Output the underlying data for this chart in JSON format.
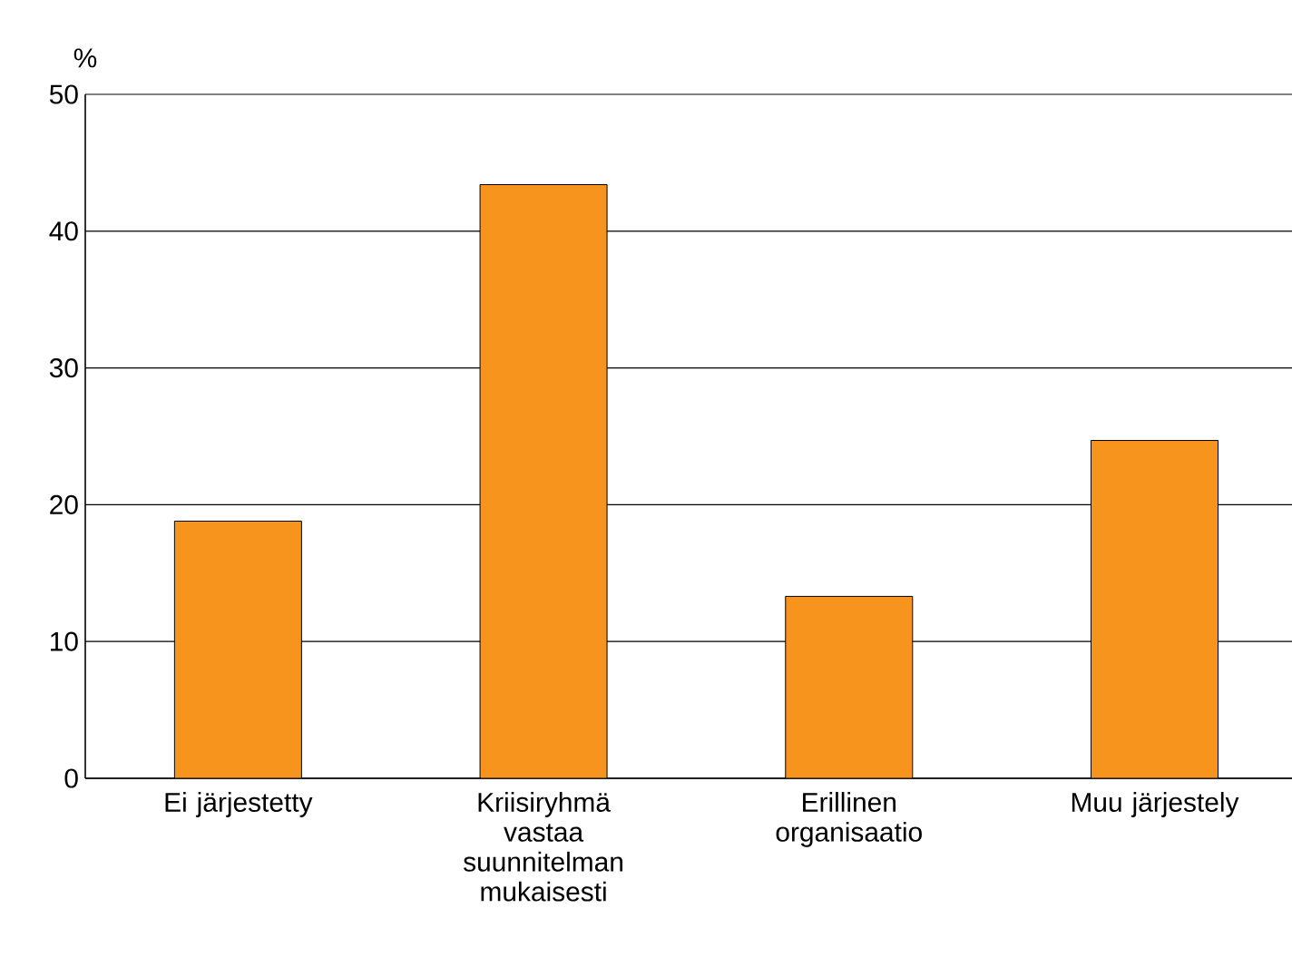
{
  "chart_data": {
    "type": "bar",
    "ylabel": "%",
    "categories": [
      "Ei järjestetty",
      "Kriisiryhmä vastaa suunnitelman mukaisesti",
      "Erillinen organisaatio",
      "Muu järjestely"
    ],
    "values": [
      18.8,
      43.4,
      13.3,
      24.7
    ],
    "color": "#f7941d",
    "ylim": [
      0,
      50
    ],
    "yticks": [
      0,
      10,
      20,
      30,
      40,
      50
    ],
    "grid": "y"
  }
}
